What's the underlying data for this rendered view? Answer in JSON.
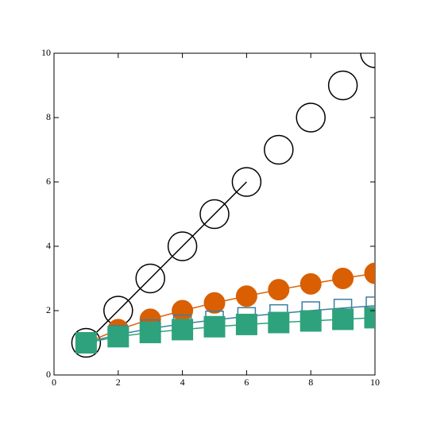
{
  "chart_data": {
    "type": "line",
    "x": [
      1,
      2,
      3,
      4,
      5,
      6,
      7,
      8,
      9,
      10
    ],
    "series": [
      {
        "color": "#000000",
        "marker": "none",
        "line": true,
        "values": [
          1,
          2,
          3,
          4,
          5,
          6,
          null,
          null,
          null,
          null
        ]
      },
      {
        "color": "#000000",
        "marker": "circle",
        "filled": false,
        "line": false,
        "values": [
          1,
          2,
          3,
          4,
          5,
          6,
          7,
          8,
          9,
          10
        ]
      },
      {
        "color": "#d95f02",
        "marker": "circle",
        "filled": true,
        "line": true,
        "values": [
          1,
          1.41,
          1.73,
          2,
          2.24,
          2.45,
          2.65,
          2.83,
          3,
          3.16
        ]
      },
      {
        "color": "#3b7ea1",
        "marker": "square",
        "filled": false,
        "line": true,
        "values": [
          1,
          1.26,
          1.44,
          1.59,
          1.71,
          1.82,
          1.91,
          2,
          2.08,
          2.15
        ]
      },
      {
        "color": "#2ea27c",
        "marker": "square",
        "filled": true,
        "line": true,
        "values": [
          1,
          1.19,
          1.32,
          1.41,
          1.5,
          1.57,
          1.63,
          1.68,
          1.73,
          1.78
        ]
      }
    ],
    "xlim": [
      0,
      10
    ],
    "ylim": [
      0,
      10
    ],
    "xticks": [
      0,
      2,
      4,
      6,
      8,
      10
    ],
    "yticks": [
      0,
      2,
      4,
      6,
      8,
      10
    ]
  }
}
